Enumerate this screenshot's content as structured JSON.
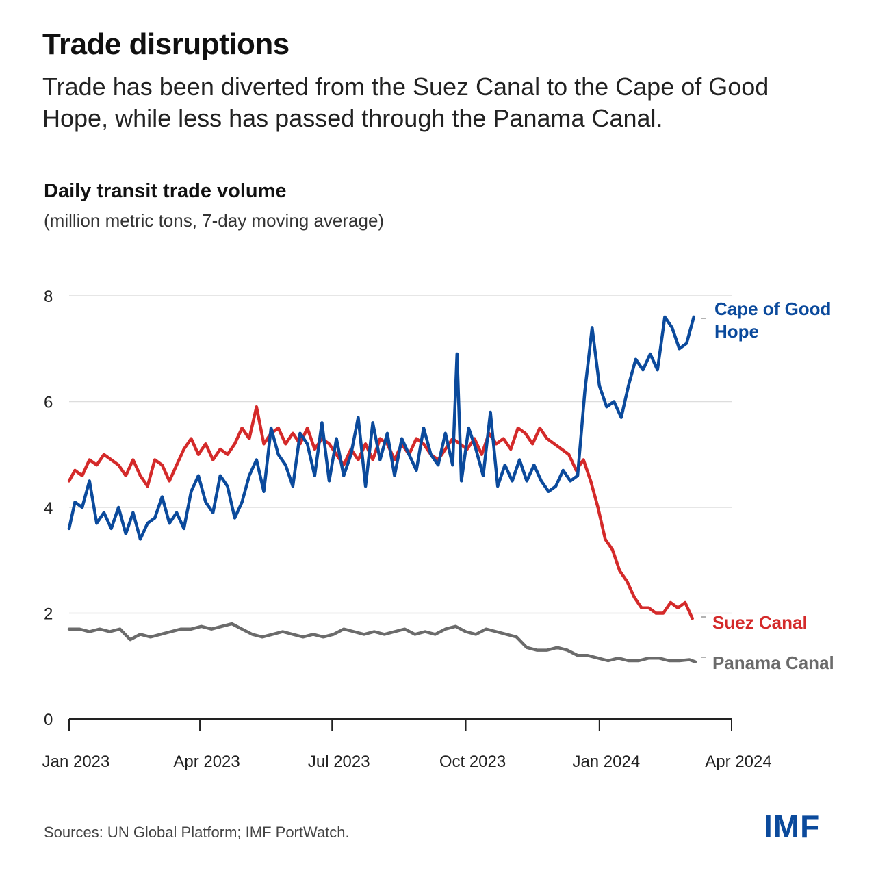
{
  "header": {
    "title": "Trade disruptions",
    "subtitle": "Trade has been diverted from the Suez Canal to the Cape of Good Hope, while less has passed through the Panama Canal."
  },
  "footer": {
    "source": "Sources: UN Global Platform; IMF PortWatch.",
    "logo": "IMF"
  },
  "chart_data": {
    "type": "line",
    "title": "Daily transit trade volume",
    "subtitle": "(million metric tons, 7-day moving average)",
    "xlabel": "",
    "ylabel": "",
    "ylim": [
      0,
      8
    ],
    "yticks": [
      0,
      2,
      4,
      6,
      8
    ],
    "xlim": [
      "2023-01-01",
      "2024-04-01"
    ],
    "xticks": [
      {
        "date": "2023-01-01",
        "label": "Jan 2023"
      },
      {
        "date": "2023-04-01",
        "label": "Apr 2023"
      },
      {
        "date": "2023-07-01",
        "label": "Jul 2023"
      },
      {
        "date": "2023-10-01",
        "label": "Oct 2023"
      },
      {
        "date": "2024-01-01",
        "label": "Jan 2024"
      },
      {
        "date": "2024-04-01",
        "label": "Apr 2024"
      }
    ],
    "grid": true,
    "legend": "direct labels at line ends (right)",
    "series": [
      {
        "name": "Cape of Good Hope",
        "color": "#0b4a9c",
        "x": [
          "2023-01-01",
          "2023-01-05",
          "2023-01-10",
          "2023-01-15",
          "2023-01-20",
          "2023-01-25",
          "2023-01-30",
          "2023-02-04",
          "2023-02-09",
          "2023-02-14",
          "2023-02-19",
          "2023-02-24",
          "2023-03-01",
          "2023-03-06",
          "2023-03-11",
          "2023-03-16",
          "2023-03-21",
          "2023-03-26",
          "2023-03-31",
          "2023-04-05",
          "2023-04-10",
          "2023-04-15",
          "2023-04-20",
          "2023-04-25",
          "2023-04-30",
          "2023-05-05",
          "2023-05-10",
          "2023-05-15",
          "2023-05-20",
          "2023-05-25",
          "2023-05-30",
          "2023-06-04",
          "2023-06-09",
          "2023-06-14",
          "2023-06-19",
          "2023-06-24",
          "2023-06-29",
          "2023-07-04",
          "2023-07-09",
          "2023-07-14",
          "2023-07-19",
          "2023-07-24",
          "2023-07-29",
          "2023-08-03",
          "2023-08-08",
          "2023-08-13",
          "2023-08-18",
          "2023-08-23",
          "2023-08-28",
          "2023-09-02",
          "2023-09-07",
          "2023-09-12",
          "2023-09-17",
          "2023-09-22",
          "2023-09-25",
          "2023-09-28",
          "2023-10-03",
          "2023-10-08",
          "2023-10-13",
          "2023-10-18",
          "2023-10-23",
          "2023-10-28",
          "2023-11-02",
          "2023-11-07",
          "2023-11-12",
          "2023-11-17",
          "2023-11-22",
          "2023-11-27",
          "2023-12-02",
          "2023-12-07",
          "2023-12-12",
          "2023-12-17",
          "2023-12-22",
          "2023-12-27",
          "2024-01-01",
          "2024-01-06",
          "2024-01-11",
          "2024-01-16",
          "2024-01-21",
          "2024-01-26",
          "2024-01-31",
          "2024-02-05",
          "2024-02-10",
          "2024-02-15",
          "2024-02-20",
          "2024-02-25",
          "2024-03-01",
          "2024-03-06"
        ],
        "values": [
          3.6,
          4.1,
          4.0,
          4.5,
          3.7,
          3.9,
          3.6,
          4.0,
          3.5,
          3.9,
          3.4,
          3.7,
          3.8,
          4.2,
          3.7,
          3.9,
          3.6,
          4.3,
          4.6,
          4.1,
          3.9,
          4.6,
          4.4,
          3.8,
          4.1,
          4.6,
          4.9,
          4.3,
          5.5,
          5.0,
          4.8,
          4.4,
          5.4,
          5.2,
          4.6,
          5.6,
          4.5,
          5.3,
          4.6,
          5.0,
          5.7,
          4.4,
          5.6,
          4.9,
          5.4,
          4.6,
          5.3,
          5.0,
          4.7,
          5.5,
          5.0,
          4.8,
          5.4,
          4.8,
          6.9,
          4.5,
          5.5,
          5.1,
          4.6,
          5.8,
          4.4,
          4.8,
          4.5,
          4.9,
          4.5,
          4.8,
          4.5,
          4.3,
          4.4,
          4.7,
          4.5,
          4.6,
          6.2,
          7.4,
          6.3,
          5.9,
          6.0,
          5.7,
          6.3,
          6.8,
          6.6,
          6.9,
          6.6,
          7.6,
          7.4,
          7.0,
          7.1,
          7.6
        ]
      },
      {
        "name": "Suez Canal",
        "color": "#d42a2a",
        "x": [
          "2023-01-01",
          "2023-01-05",
          "2023-01-10",
          "2023-01-15",
          "2023-01-20",
          "2023-01-25",
          "2023-01-30",
          "2023-02-04",
          "2023-02-09",
          "2023-02-14",
          "2023-02-19",
          "2023-02-24",
          "2023-03-01",
          "2023-03-06",
          "2023-03-11",
          "2023-03-16",
          "2023-03-21",
          "2023-03-26",
          "2023-03-31",
          "2023-04-05",
          "2023-04-10",
          "2023-04-15",
          "2023-04-20",
          "2023-04-25",
          "2023-04-30",
          "2023-05-05",
          "2023-05-10",
          "2023-05-15",
          "2023-05-20",
          "2023-05-25",
          "2023-05-30",
          "2023-06-04",
          "2023-06-09",
          "2023-06-14",
          "2023-06-19",
          "2023-06-24",
          "2023-06-29",
          "2023-07-04",
          "2023-07-09",
          "2023-07-14",
          "2023-07-19",
          "2023-07-24",
          "2023-07-29",
          "2023-08-03",
          "2023-08-08",
          "2023-08-13",
          "2023-08-18",
          "2023-08-23",
          "2023-08-28",
          "2023-09-02",
          "2023-09-07",
          "2023-09-12",
          "2023-09-17",
          "2023-09-22",
          "2023-09-27",
          "2023-10-02",
          "2023-10-07",
          "2023-10-12",
          "2023-10-17",
          "2023-10-22",
          "2023-10-27",
          "2023-11-01",
          "2023-11-06",
          "2023-11-11",
          "2023-11-16",
          "2023-11-21",
          "2023-11-26",
          "2023-12-01",
          "2023-12-06",
          "2023-12-11",
          "2023-12-16",
          "2023-12-21",
          "2023-12-26",
          "2023-12-31",
          "2024-01-05",
          "2024-01-10",
          "2024-01-15",
          "2024-01-20",
          "2024-01-25",
          "2024-01-30",
          "2024-02-04",
          "2024-02-09",
          "2024-02-14",
          "2024-02-19",
          "2024-02-24",
          "2024-02-29",
          "2024-03-05"
        ],
        "values": [
          4.5,
          4.7,
          4.6,
          4.9,
          4.8,
          5.0,
          4.9,
          4.8,
          4.6,
          4.9,
          4.6,
          4.4,
          4.9,
          4.8,
          4.5,
          4.8,
          5.1,
          5.3,
          5.0,
          5.2,
          4.9,
          5.1,
          5.0,
          5.2,
          5.5,
          5.3,
          5.9,
          5.2,
          5.4,
          5.5,
          5.2,
          5.4,
          5.2,
          5.5,
          5.1,
          5.3,
          5.2,
          5.0,
          4.8,
          5.1,
          4.9,
          5.2,
          4.9,
          5.3,
          5.2,
          4.9,
          5.2,
          5.0,
          5.3,
          5.2,
          5.0,
          4.9,
          5.1,
          5.3,
          5.2,
          5.1,
          5.3,
          5.0,
          5.4,
          5.2,
          5.3,
          5.1,
          5.5,
          5.4,
          5.2,
          5.5,
          5.3,
          5.2,
          5.1,
          5.0,
          4.7,
          4.9,
          4.5,
          4.0,
          3.4,
          3.2,
          2.8,
          2.6,
          2.3,
          2.1,
          2.1,
          2.0,
          2.0,
          2.2,
          2.1,
          2.2,
          1.9
        ]
      },
      {
        "name": "Panama Canal",
        "color": "#6b6b6b",
        "x": [
          "2023-01-01",
          "2023-01-08",
          "2023-01-15",
          "2023-01-22",
          "2023-01-29",
          "2023-02-05",
          "2023-02-12",
          "2023-02-19",
          "2023-02-26",
          "2023-03-05",
          "2023-03-12",
          "2023-03-19",
          "2023-03-26",
          "2023-04-02",
          "2023-04-09",
          "2023-04-16",
          "2023-04-23",
          "2023-04-30",
          "2023-05-07",
          "2023-05-14",
          "2023-05-21",
          "2023-05-28",
          "2023-06-04",
          "2023-06-11",
          "2023-06-18",
          "2023-06-25",
          "2023-07-02",
          "2023-07-09",
          "2023-07-16",
          "2023-07-23",
          "2023-07-30",
          "2023-08-06",
          "2023-08-13",
          "2023-08-20",
          "2023-08-27",
          "2023-09-03",
          "2023-09-10",
          "2023-09-17",
          "2023-09-24",
          "2023-10-01",
          "2023-10-08",
          "2023-10-15",
          "2023-10-22",
          "2023-10-29",
          "2023-11-05",
          "2023-11-12",
          "2023-11-19",
          "2023-11-26",
          "2023-12-03",
          "2023-12-10",
          "2023-12-17",
          "2023-12-24",
          "2023-12-31",
          "2024-01-07",
          "2024-01-14",
          "2024-01-21",
          "2024-01-28",
          "2024-02-04",
          "2024-02-11",
          "2024-02-18",
          "2024-02-25",
          "2024-03-03",
          "2024-03-07"
        ],
        "values": [
          1.7,
          1.7,
          1.65,
          1.7,
          1.65,
          1.7,
          1.5,
          1.6,
          1.55,
          1.6,
          1.65,
          1.7,
          1.7,
          1.75,
          1.7,
          1.75,
          1.8,
          1.7,
          1.6,
          1.55,
          1.6,
          1.65,
          1.6,
          1.55,
          1.6,
          1.55,
          1.6,
          1.7,
          1.65,
          1.6,
          1.65,
          1.6,
          1.65,
          1.7,
          1.6,
          1.65,
          1.6,
          1.7,
          1.75,
          1.65,
          1.6,
          1.7,
          1.65,
          1.6,
          1.55,
          1.35,
          1.3,
          1.3,
          1.35,
          1.3,
          1.2,
          1.2,
          1.15,
          1.1,
          1.15,
          1.1,
          1.1,
          1.15,
          1.15,
          1.1,
          1.1,
          1.12,
          1.08
        ]
      }
    ],
    "annotations": [
      {
        "series": "Cape of Good Hope",
        "text": "Cape of Good Hope"
      },
      {
        "series": "Suez Canal",
        "text": "Suez Canal"
      },
      {
        "series": "Panama Canal",
        "text": "Panama Canal"
      }
    ]
  }
}
